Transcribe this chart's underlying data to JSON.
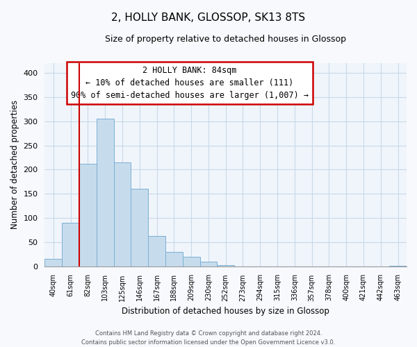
{
  "title": "2, HOLLY BANK, GLOSSOP, SK13 8TS",
  "subtitle": "Size of property relative to detached houses in Glossop",
  "xlabel": "Distribution of detached houses by size in Glossop",
  "ylabel": "Number of detached properties",
  "categories": [
    "40sqm",
    "61sqm",
    "82sqm",
    "103sqm",
    "125sqm",
    "146sqm",
    "167sqm",
    "188sqm",
    "209sqm",
    "230sqm",
    "252sqm",
    "273sqm",
    "294sqm",
    "315sqm",
    "336sqm",
    "357sqm",
    "378sqm",
    "400sqm",
    "421sqm",
    "442sqm",
    "463sqm"
  ],
  "values": [
    17,
    90,
    212,
    305,
    215,
    161,
    64,
    31,
    20,
    10,
    3,
    1,
    0,
    0,
    1,
    0,
    0,
    0,
    0,
    0,
    2
  ],
  "bar_color": "#c6dcec",
  "bar_edge_color": "#7bafd4",
  "vline_color": "#cc0000",
  "vline_index": 2,
  "ylim": [
    0,
    420
  ],
  "yticks": [
    0,
    50,
    100,
    150,
    200,
    250,
    300,
    350,
    400
  ],
  "annotation_title": "2 HOLLY BANK: 84sqm",
  "annotation_line1": "← 10% of detached houses are smaller (111)",
  "annotation_line2": "90% of semi-detached houses are larger (1,007) →",
  "footer_line1": "Contains HM Land Registry data © Crown copyright and database right 2024.",
  "footer_line2": "Contains public sector information licensed under the Open Government Licence v3.0.",
  "background_color": "#f7f9fc",
  "plot_bg_color": "#f0f5fb",
  "grid_color": "#c8d8e8",
  "title_fontsize": 11,
  "subtitle_fontsize": 9
}
